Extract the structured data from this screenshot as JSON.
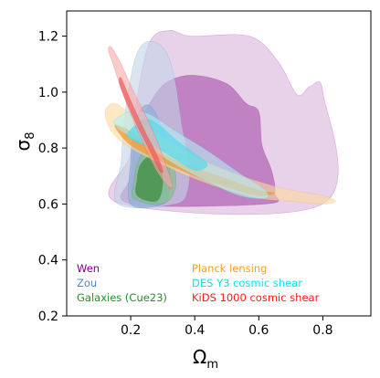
{
  "chart_data": {
    "type": "contour",
    "title": "",
    "xlabel": "Ω",
    "xlabel_sub": "m",
    "ylabel": "σ",
    "ylabel_sub": "8",
    "xlim": [
      0.0,
      0.95
    ],
    "ylim": [
      0.2,
      1.29
    ],
    "xticks": [
      0.2,
      0.4,
      0.6,
      0.8
    ],
    "yticks": [
      0.2,
      0.4,
      0.6,
      0.8,
      1.0,
      1.2
    ],
    "x_tick_labels": [
      "0.2",
      "0.4",
      "0.6",
      "0.8"
    ],
    "y_tick_labels": [
      "0.2",
      "0.4",
      "0.6",
      "0.8",
      "1.0",
      "1.2"
    ],
    "grid": false,
    "legend_placement": "bottom-left",
    "series": [
      {
        "name": "Wen",
        "color": "#800080",
        "fill_outer": "#d8b4da",
        "fill_inner": "#b060b4",
        "outer": [
          [
            0.17,
            0.6
          ],
          [
            0.8,
            0.6
          ],
          [
            0.8,
            1.0
          ],
          [
            0.76,
            1.02
          ],
          [
            0.72,
            0.99
          ],
          [
            0.66,
            1.11
          ],
          [
            0.57,
            1.2
          ],
          [
            0.39,
            1.2
          ],
          [
            0.32,
            1.22
          ],
          [
            0.26,
            1.18
          ],
          [
            0.22,
            0.98
          ],
          [
            0.2,
            0.78
          ]
        ],
        "inner": [
          [
            0.2,
            0.6
          ],
          [
            0.62,
            0.6
          ],
          [
            0.65,
            0.64
          ],
          [
            0.64,
            0.72
          ],
          [
            0.61,
            0.81
          ],
          [
            0.6,
            0.93
          ],
          [
            0.56,
            0.96
          ],
          [
            0.5,
            1.03
          ],
          [
            0.4,
            1.06
          ],
          [
            0.32,
            1.04
          ],
          [
            0.27,
            0.98
          ],
          [
            0.22,
            0.86
          ],
          [
            0.2,
            0.7
          ]
        ]
      },
      {
        "name": "Zou",
        "color": "#4f86c6",
        "fill_outer": "#c3d4e8",
        "fill_inner": "#8fb1d6",
        "outer": [
          [
            0.16,
            0.6
          ],
          [
            0.34,
            0.6
          ],
          [
            0.38,
            0.66
          ],
          [
            0.38,
            0.76
          ],
          [
            0.36,
            0.88
          ],
          [
            0.34,
            1.03
          ],
          [
            0.32,
            1.12
          ],
          [
            0.29,
            1.17
          ],
          [
            0.25,
            1.18
          ],
          [
            0.22,
            1.14
          ],
          [
            0.2,
            1.05
          ],
          [
            0.18,
            0.9
          ],
          [
            0.17,
            0.75
          ]
        ],
        "inner": [
          [
            0.2,
            0.6
          ],
          [
            0.3,
            0.6
          ],
          [
            0.32,
            0.66
          ],
          [
            0.32,
            0.76
          ],
          [
            0.3,
            0.86
          ],
          [
            0.27,
            0.94
          ],
          [
            0.24,
            0.95
          ],
          [
            0.21,
            0.88
          ],
          [
            0.2,
            0.76
          ]
        ]
      },
      {
        "name": "Galaxies (Cue23)",
        "color": "#2e8b2e",
        "fill_outer": "#7fbe7f",
        "fill_inner": "#3a8c3a",
        "outer": [
          [
            0.21,
            0.62
          ],
          [
            0.3,
            0.6
          ],
          [
            0.34,
            0.66
          ],
          [
            0.33,
            0.76
          ],
          [
            0.3,
            0.8
          ],
          [
            0.25,
            0.8
          ],
          [
            0.22,
            0.74
          ],
          [
            0.21,
            0.68
          ]
        ],
        "inner": [
          [
            0.22,
            0.63
          ],
          [
            0.28,
            0.61
          ],
          [
            0.3,
            0.67
          ],
          [
            0.29,
            0.74
          ],
          [
            0.26,
            0.77
          ],
          [
            0.23,
            0.74
          ],
          [
            0.22,
            0.69
          ]
        ]
      },
      {
        "name": "Planck lensing",
        "color": "#f4a020",
        "fill_outer": "#fcd9a0",
        "fill_inner": "#f0962a",
        "outer": [
          [
            0.12,
            0.93
          ],
          [
            0.15,
            0.96
          ],
          [
            0.2,
            0.92
          ],
          [
            0.3,
            0.84
          ],
          [
            0.4,
            0.77
          ],
          [
            0.5,
            0.72
          ],
          [
            0.6,
            0.68
          ],
          [
            0.7,
            0.65
          ],
          [
            0.8,
            0.63
          ],
          [
            0.84,
            0.61
          ],
          [
            0.8,
            0.6
          ],
          [
            0.7,
            0.61
          ],
          [
            0.6,
            0.62
          ],
          [
            0.5,
            0.65
          ],
          [
            0.4,
            0.69
          ],
          [
            0.3,
            0.74
          ],
          [
            0.2,
            0.8
          ],
          [
            0.14,
            0.86
          ]
        ],
        "inner": [
          [
            0.15,
            0.88
          ],
          [
            0.2,
            0.86
          ],
          [
            0.3,
            0.78
          ],
          [
            0.4,
            0.73
          ],
          [
            0.5,
            0.69
          ],
          [
            0.6,
            0.65
          ],
          [
            0.65,
            0.64
          ],
          [
            0.6,
            0.63
          ],
          [
            0.5,
            0.66
          ],
          [
            0.4,
            0.7
          ],
          [
            0.3,
            0.75
          ],
          [
            0.2,
            0.81
          ]
        ]
      },
      {
        "name": "DES Y3 cosmic shear",
        "color": "#00e5ee",
        "fill_outer": "#b4eef4",
        "fill_inner": "#5ad8ea",
        "outer": [
          [
            0.15,
            0.9
          ],
          [
            0.2,
            0.93
          ],
          [
            0.26,
            0.92
          ],
          [
            0.34,
            0.86
          ],
          [
            0.44,
            0.79
          ],
          [
            0.54,
            0.71
          ],
          [
            0.62,
            0.65
          ],
          [
            0.62,
            0.62
          ],
          [
            0.54,
            0.63
          ],
          [
            0.44,
            0.68
          ],
          [
            0.34,
            0.74
          ],
          [
            0.26,
            0.8
          ],
          [
            0.2,
            0.84
          ],
          [
            0.16,
            0.87
          ]
        ],
        "inner": [
          [
            0.19,
            0.85
          ],
          [
            0.24,
            0.9
          ],
          [
            0.28,
            0.89
          ],
          [
            0.34,
            0.83
          ],
          [
            0.4,
            0.78
          ],
          [
            0.44,
            0.74
          ],
          [
            0.4,
            0.72
          ],
          [
            0.34,
            0.76
          ],
          [
            0.28,
            0.8
          ],
          [
            0.22,
            0.82
          ]
        ]
      },
      {
        "name": "KiDS 1000 cosmic shear",
        "color": "#ff1a1a",
        "fill_outer": "#f6a8a8",
        "fill_inner": "#ee5a5a",
        "outer": [
          [
            0.14,
            1.16
          ],
          [
            0.17,
            1.1
          ],
          [
            0.21,
            1.0
          ],
          [
            0.27,
            0.86
          ],
          [
            0.31,
            0.74
          ],
          [
            0.33,
            0.67
          ],
          [
            0.32,
            0.66
          ],
          [
            0.28,
            0.72
          ],
          [
            0.23,
            0.84
          ],
          [
            0.18,
            0.98
          ],
          [
            0.145,
            1.1
          ],
          [
            0.13,
            1.15
          ]
        ],
        "inner": [
          [
            0.17,
            1.05
          ],
          [
            0.2,
            0.97
          ],
          [
            0.24,
            0.87
          ],
          [
            0.28,
            0.78
          ],
          [
            0.3,
            0.72
          ],
          [
            0.29,
            0.72
          ],
          [
            0.26,
            0.79
          ],
          [
            0.22,
            0.88
          ],
          [
            0.185,
            0.97
          ],
          [
            0.165,
            1.03
          ]
        ]
      }
    ],
    "legend_items": [
      {
        "label": "Wen",
        "color": "#800080"
      },
      {
        "label": "Zou",
        "color": "#4f86c6"
      },
      {
        "label": "Galaxies (Cue23)",
        "color": "#2e8b2e"
      },
      {
        "label": "Planck lensing",
        "color": "#f4a020"
      },
      {
        "label": "DES Y3 cosmic shear",
        "color": "#00e5ee"
      },
      {
        "label": "KiDS 1000 cosmic shear",
        "color": "#ff1a1a"
      }
    ]
  }
}
